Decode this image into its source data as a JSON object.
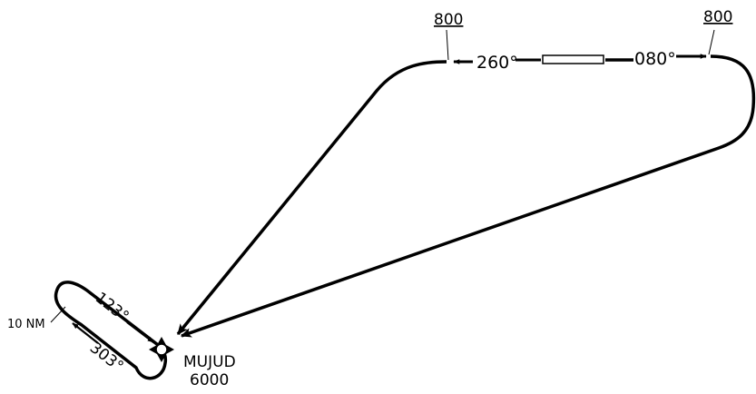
{
  "approach": {
    "runway_heading_west": "260°",
    "runway_heading_east": "080°",
    "altitude_left": "800",
    "altitude_right": "800"
  },
  "holding": {
    "inbound_course": "123°",
    "outbound_course": "303°",
    "leg_length": "10 NM"
  },
  "fix": {
    "name": "MUJUD",
    "altitude": "6000"
  }
}
